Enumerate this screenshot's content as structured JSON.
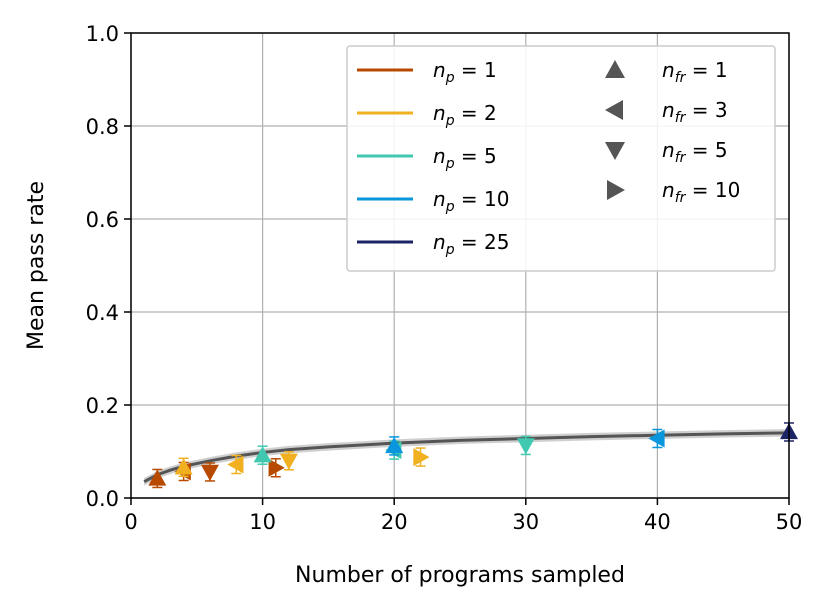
{
  "chart_data": {
    "type": "scatter",
    "xlabel": "Number of programs sampled",
    "ylabel": "Mean pass rate",
    "xlim": [
      0,
      50
    ],
    "ylim": [
      0,
      1.0
    ],
    "x_ticks": [
      "0",
      "10",
      "20",
      "30",
      "40",
      "50"
    ],
    "y_ticks": [
      "0.0",
      "0.2",
      "0.4",
      "0.6",
      "0.8",
      "1.0"
    ],
    "grid": true,
    "legend_position": "top-right",
    "trend_line": {
      "color": "#555555",
      "band_color": "#bbbbbb",
      "x": [
        1,
        2,
        3,
        4,
        5,
        6,
        8,
        10,
        12,
        15,
        20,
        25,
        30,
        35,
        40,
        45,
        50
      ],
      "y": [
        0.035,
        0.05,
        0.06,
        0.068,
        0.074,
        0.08,
        0.09,
        0.098,
        0.104,
        0.11,
        0.118,
        0.124,
        0.128,
        0.132,
        0.135,
        0.138,
        0.14
      ]
    },
    "color_legend": [
      {
        "var": "n",
        "sub": "p",
        "value": "1",
        "color": "#b84a00"
      },
      {
        "var": "n",
        "sub": "p",
        "value": "2",
        "color": "#f0b020"
      },
      {
        "var": "n",
        "sub": "p",
        "value": "5",
        "color": "#40c8b0"
      },
      {
        "var": "n",
        "sub": "p",
        "value": "10",
        "color": "#0a96dc"
      },
      {
        "var": "n",
        "sub": "p",
        "value": "25",
        "color": "#1c2365"
      }
    ],
    "marker_legend": [
      {
        "var": "n",
        "sub": "fr",
        "value": "1",
        "marker": "triangle-up"
      },
      {
        "var": "n",
        "sub": "fr",
        "value": "3",
        "marker": "triangle-left"
      },
      {
        "var": "n",
        "sub": "fr",
        "value": "5",
        "marker": "triangle-down"
      },
      {
        "var": "n",
        "sub": "fr",
        "value": "10",
        "marker": "triangle-right"
      }
    ],
    "marker_legend_color": "#555555",
    "points": [
      {
        "x": 2,
        "y": 0.042,
        "color": "#b84a00",
        "marker": "triangle-up"
      },
      {
        "x": 4,
        "y": 0.057,
        "color": "#b84a00",
        "marker": "triangle-left"
      },
      {
        "x": 6,
        "y": 0.056,
        "color": "#b84a00",
        "marker": "triangle-down"
      },
      {
        "x": 11,
        "y": 0.065,
        "color": "#b84a00",
        "marker": "triangle-right"
      },
      {
        "x": 4,
        "y": 0.066,
        "color": "#f0b020",
        "marker": "triangle-up"
      },
      {
        "x": 8,
        "y": 0.072,
        "color": "#f0b020",
        "marker": "triangle-left"
      },
      {
        "x": 12,
        "y": 0.08,
        "color": "#f0b020",
        "marker": "triangle-down"
      },
      {
        "x": 22,
        "y": 0.088,
        "color": "#f0b020",
        "marker": "triangle-right"
      },
      {
        "x": 10,
        "y": 0.092,
        "color": "#40c8b0",
        "marker": "triangle-up"
      },
      {
        "x": 20,
        "y": 0.103,
        "color": "#40c8b0",
        "marker": "triangle-left"
      },
      {
        "x": 30,
        "y": 0.113,
        "color": "#40c8b0",
        "marker": "triangle-down"
      },
      {
        "x": 20,
        "y": 0.112,
        "color": "#0a96dc",
        "marker": "triangle-up"
      },
      {
        "x": 40,
        "y": 0.128,
        "color": "#0a96dc",
        "marker": "triangle-left"
      },
      {
        "x": 50,
        "y": 0.142,
        "color": "#1c2365",
        "marker": "triangle-up"
      }
    ]
  }
}
